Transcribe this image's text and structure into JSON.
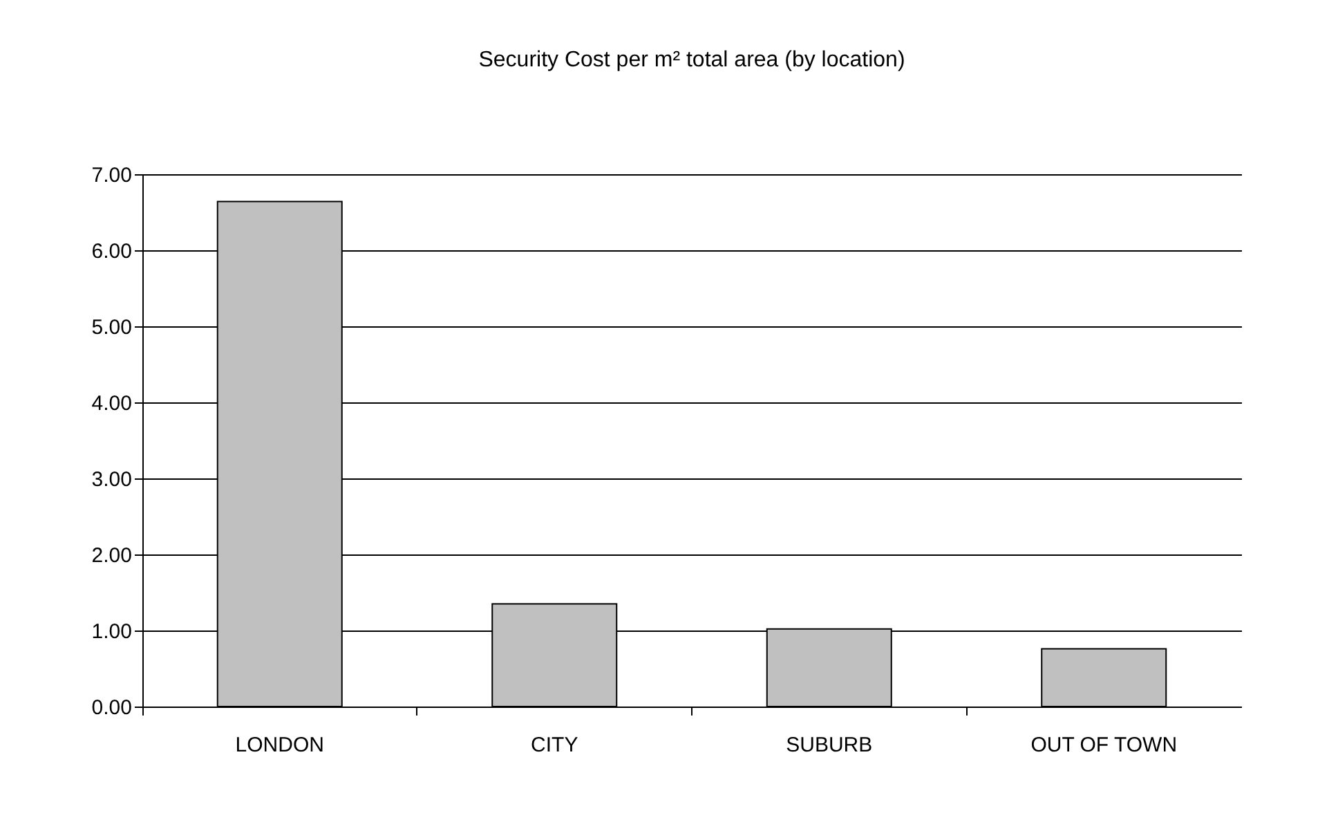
{
  "chart_data": {
    "type": "bar",
    "title": "Security Cost per m² total area (by location)",
    "categories": [
      "LONDON",
      "CITY",
      "SUBURB",
      "OUT OF TOWN"
    ],
    "values": [
      6.64,
      1.35,
      1.02,
      0.76
    ],
    "color": "#c0c0c0",
    "ylim": [
      0,
      7
    ],
    "yticks": [
      {
        "value": 0,
        "label": "0.00"
      },
      {
        "value": 1,
        "label": "1.00"
      },
      {
        "value": 2,
        "label": "2.00"
      },
      {
        "value": 3,
        "label": "3.00"
      },
      {
        "value": 4,
        "label": "4.00"
      },
      {
        "value": 5,
        "label": "5.00"
      },
      {
        "value": 6,
        "label": "6.00"
      },
      {
        "value": 7,
        "label": "7.00"
      }
    ],
    "grid": "y"
  }
}
